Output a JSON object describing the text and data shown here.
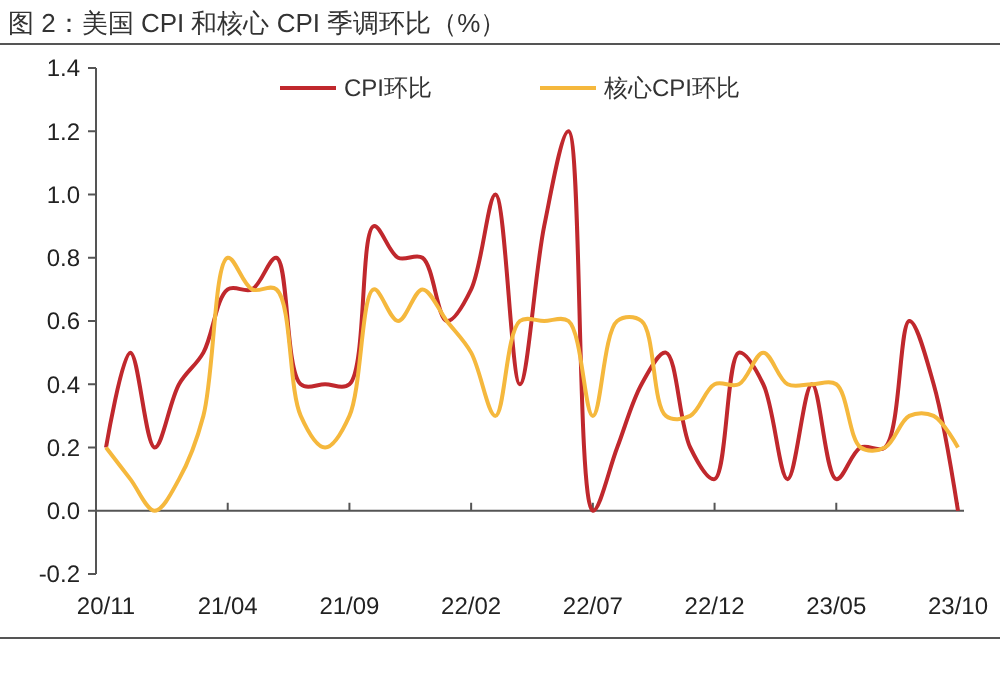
{
  "chart_data": {
    "type": "line",
    "title": "图 2：美国 CPI 和核心 CPI 季调环比（%）",
    "categories": [
      "20/11",
      null,
      null,
      null,
      null,
      "21/04",
      null,
      null,
      null,
      null,
      "21/09",
      null,
      null,
      null,
      null,
      "22/02",
      null,
      null,
      null,
      null,
      "22/07",
      null,
      null,
      null,
      null,
      "22/12",
      null,
      null,
      null,
      null,
      "23/05",
      null,
      null,
      null,
      null,
      "23/10"
    ],
    "series": [
      {
        "name": "CPI环比",
        "color": "#c0282d",
        "values": [
          0.2,
          0.5,
          0.2,
          0.4,
          0.5,
          0.7,
          0.7,
          0.8,
          0.4,
          0.4,
          0.4,
          0.9,
          0.8,
          0.8,
          0.6,
          0.7,
          1.0,
          0.4,
          0.9,
          1.2,
          0.0,
          0.2,
          0.4,
          0.5,
          0.2,
          0.1,
          0.5,
          0.4,
          0.1,
          0.4,
          0.1,
          0.2,
          0.2,
          0.6,
          0.4,
          0.0
        ]
      },
      {
        "name": "核心CPI环比",
        "color": "#f5b83d",
        "values": [
          0.2,
          0.1,
          0.0,
          0.1,
          0.3,
          0.8,
          0.7,
          0.7,
          0.3,
          0.2,
          0.3,
          0.7,
          0.6,
          0.7,
          0.6,
          0.5,
          0.3,
          0.6,
          0.6,
          0.6,
          0.3,
          0.6,
          0.6,
          0.3,
          0.3,
          0.4,
          0.4,
          0.5,
          0.4,
          0.4,
          0.4,
          0.2,
          0.2,
          0.3,
          0.3,
          0.2
        ]
      }
    ],
    "ylim": [
      -0.2,
      1.4
    ],
    "yticks": [
      {
        "value": -0.2,
        "label": "-0.2"
      },
      {
        "value": 0,
        "label": "0.0"
      },
      {
        "value": 0.2,
        "label": "0.2"
      },
      {
        "value": 0.4,
        "label": "0.4"
      },
      {
        "value": 0.6,
        "label": "0.6"
      },
      {
        "value": 0.8,
        "label": "0.8"
      },
      {
        "value": 1,
        "label": "1.0"
      },
      {
        "value": 1.2,
        "label": "1.2"
      },
      {
        "value": 1.4,
        "label": "1.4"
      }
    ],
    "legend": "top",
    "marker": "none",
    "line_style": "solid"
  }
}
